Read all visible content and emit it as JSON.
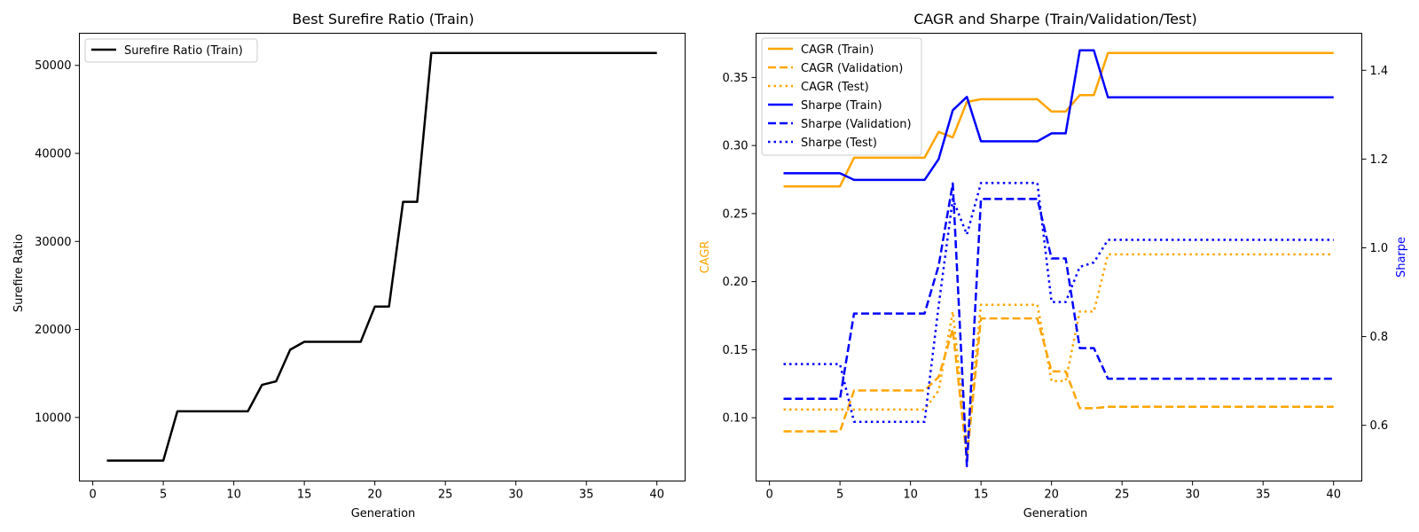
{
  "chart_data": [
    {
      "type": "line",
      "title": "Best Surefire Ratio (Train)",
      "xlabel": "Generation",
      "ylabel": "Surefire Ratio",
      "xlim": [
        -0.95,
        42.0
      ],
      "ylim": [
        2780,
        53650
      ],
      "xticks": [
        0,
        5,
        10,
        15,
        20,
        25,
        30,
        35,
        40
      ],
      "yticks": [
        10000,
        20000,
        30000,
        40000,
        50000
      ],
      "legend_position": "top-left",
      "series": [
        {
          "name": "Surefire Ratio (Train)",
          "color": "#000000",
          "style": "solid",
          "x": [
            1,
            2,
            3,
            4,
            5,
            6,
            7,
            8,
            9,
            10,
            11,
            12,
            13,
            14,
            15,
            16,
            17,
            18,
            19,
            20,
            21,
            22,
            23,
            24,
            25,
            26,
            27,
            28,
            29,
            30,
            31,
            32,
            33,
            34,
            35,
            36,
            37,
            38,
            39,
            40
          ],
          "values": [
            5100,
            5100,
            5100,
            5100,
            5100,
            10700,
            10700,
            10700,
            10700,
            10700,
            10700,
            13700,
            14100,
            17700,
            18600,
            18600,
            18600,
            18600,
            18600,
            22600,
            22600,
            34500,
            34500,
            51400,
            51400,
            51400,
            51400,
            51400,
            51400,
            51400,
            51400,
            51400,
            51400,
            51400,
            51400,
            51400,
            51400,
            51400,
            51400,
            51400
          ]
        }
      ]
    },
    {
      "type": "line",
      "title": "CAGR and Sharpe (Train/Validation/Test)",
      "xlabel": "Generation",
      "ylabel": "CAGR",
      "ylabel_right": "Sharpe",
      "ylabel_color": "#ffa500",
      "ylabel_right_color": "#0000ff",
      "xlim": [
        -0.95,
        42.0
      ],
      "ylim": [
        0.0535,
        0.3825
      ],
      "ylim_right": [
        0.4745,
        1.4835
      ],
      "xticks": [
        0,
        5,
        10,
        15,
        20,
        25,
        30,
        35,
        40
      ],
      "yticks": [
        0.1,
        0.15,
        0.2,
        0.25,
        0.3,
        0.35
      ],
      "yticks_right": [
        0.6,
        0.8,
        1.0,
        1.2,
        1.4
      ],
      "legend_position": "top-left",
      "x": [
        1,
        2,
        3,
        4,
        5,
        6,
        7,
        8,
        9,
        10,
        11,
        12,
        13,
        14,
        15,
        16,
        17,
        18,
        19,
        20,
        21,
        22,
        23,
        24,
        25,
        26,
        27,
        28,
        29,
        30,
        31,
        32,
        33,
        34,
        35,
        36,
        37,
        38,
        39,
        40
      ],
      "series": [
        {
          "name": "CAGR (Train)",
          "axis": "left",
          "color": "#ffa500",
          "style": "solid",
          "values": [
            0.27,
            0.27,
            0.27,
            0.27,
            0.27,
            0.291,
            0.291,
            0.291,
            0.291,
            0.291,
            0.291,
            0.31,
            0.306,
            0.332,
            0.334,
            0.334,
            0.334,
            0.334,
            0.334,
            0.325,
            0.325,
            0.337,
            0.337,
            0.368,
            0.368,
            0.368,
            0.368,
            0.368,
            0.368,
            0.368,
            0.368,
            0.368,
            0.368,
            0.368,
            0.368,
            0.368,
            0.368,
            0.368,
            0.368,
            0.368
          ]
        },
        {
          "name": "CAGR (Validation)",
          "axis": "left",
          "color": "#ffa500",
          "style": "dashed",
          "values": [
            0.09,
            0.09,
            0.09,
            0.09,
            0.09,
            0.12,
            0.12,
            0.12,
            0.12,
            0.12,
            0.12,
            0.13,
            0.165,
            0.07,
            0.173,
            0.173,
            0.173,
            0.173,
            0.173,
            0.134,
            0.134,
            0.107,
            0.107,
            0.108,
            0.108,
            0.108,
            0.108,
            0.108,
            0.108,
            0.108,
            0.108,
            0.108,
            0.108,
            0.108,
            0.108,
            0.108,
            0.108,
            0.108,
            0.108,
            0.108
          ]
        },
        {
          "name": "CAGR (Test)",
          "axis": "left",
          "color": "#ffa500",
          "style": "dotted",
          "values": [
            0.106,
            0.106,
            0.106,
            0.106,
            0.106,
            0.106,
            0.106,
            0.106,
            0.106,
            0.106,
            0.106,
            0.12,
            0.178,
            0.08,
            0.183,
            0.183,
            0.183,
            0.183,
            0.183,
            0.127,
            0.127,
            0.178,
            0.178,
            0.22,
            0.22,
            0.22,
            0.22,
            0.22,
            0.22,
            0.22,
            0.22,
            0.22,
            0.22,
            0.22,
            0.22,
            0.22,
            0.22,
            0.22,
            0.22,
            0.22
          ]
        },
        {
          "name": "Sharpe (Train)",
          "axis": "right",
          "color": "#0000ff",
          "style": "solid",
          "values": [
            1.168,
            1.168,
            1.168,
            1.168,
            1.168,
            1.153,
            1.153,
            1.153,
            1.153,
            1.153,
            1.153,
            1.2,
            1.31,
            1.34,
            1.24,
            1.24,
            1.24,
            1.24,
            1.24,
            1.258,
            1.258,
            1.445,
            1.445,
            1.339,
            1.339,
            1.339,
            1.339,
            1.339,
            1.339,
            1.339,
            1.339,
            1.339,
            1.339,
            1.339,
            1.339,
            1.339,
            1.339,
            1.339,
            1.339,
            1.339
          ]
        },
        {
          "name": "Sharpe (Validation)",
          "axis": "right",
          "color": "#0000ff",
          "style": "dashed",
          "values": [
            0.66,
            0.66,
            0.66,
            0.66,
            0.66,
            0.852,
            0.852,
            0.852,
            0.852,
            0.852,
            0.852,
            0.96,
            1.145,
            0.508,
            1.11,
            1.11,
            1.11,
            1.11,
            1.11,
            0.976,
            0.976,
            0.774,
            0.774,
            0.705,
            0.705,
            0.705,
            0.705,
            0.705,
            0.705,
            0.705,
            0.705,
            0.705,
            0.705,
            0.705,
            0.705,
            0.705,
            0.705,
            0.705,
            0.705,
            0.705
          ]
        },
        {
          "name": "Sharpe (Test)",
          "axis": "right",
          "color": "#0000ff",
          "style": "dotted",
          "values": [
            0.738,
            0.738,
            0.738,
            0.738,
            0.738,
            0.608,
            0.608,
            0.608,
            0.608,
            0.608,
            0.608,
            0.87,
            1.11,
            1.03,
            1.146,
            1.146,
            1.146,
            1.146,
            1.146,
            0.878,
            0.878,
            0.957,
            0.967,
            1.018,
            1.018,
            1.018,
            1.018,
            1.018,
            1.018,
            1.018,
            1.018,
            1.018,
            1.018,
            1.018,
            1.018,
            1.018,
            1.018,
            1.018,
            1.018,
            1.018
          ]
        }
      ]
    }
  ]
}
